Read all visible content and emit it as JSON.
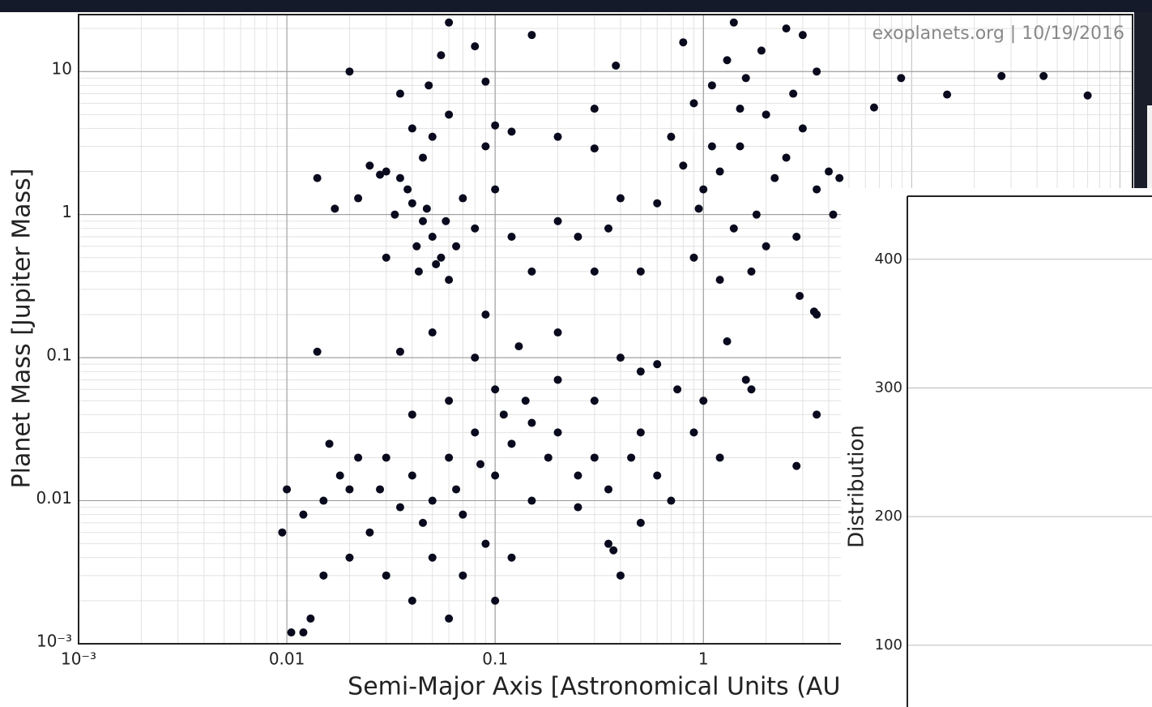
{
  "chart_data": [
    {
      "type": "scatter",
      "annotation": "exoplanets.org | 10/19/2016",
      "x_label": "Semi-Major Axis [Astronomical Units (AU)]",
      "y_label": "Planet Mass [Jupiter Mass]",
      "xscale": "log",
      "yscale": "log",
      "grid": "major+minor",
      "color": "#0a0a1e",
      "xlim": [
        0.001,
        115
      ],
      "ylim": [
        0.001,
        25
      ],
      "xticks": [
        {
          "value": 0.001,
          "label": "10⁻³"
        },
        0.01,
        0.1,
        1
      ],
      "yticks": [
        {
          "value": 0.001,
          "label": "10⁻³"
        },
        0.01,
        0.1,
        1,
        10
      ],
      "x": [
        0.03,
        0.035,
        0.04,
        0.045,
        0.05,
        0.055,
        0.042,
        0.038,
        0.047,
        0.052,
        0.06,
        0.033,
        0.028,
        0.025,
        0.045,
        0.05,
        0.04,
        0.06,
        0.055,
        0.048,
        0.035,
        0.07,
        0.08,
        0.065,
        0.058,
        0.043,
        0.03,
        0.017,
        0.014,
        0.022,
        0.1,
        0.12,
        0.15,
        0.2,
        0.09,
        0.12,
        0.2,
        0.15,
        0.06,
        0.08,
        0.09,
        0.1,
        0.25,
        0.3,
        0.35,
        0.4,
        0.3,
        0.3,
        0.38,
        1,
        1.2,
        1.5,
        2,
        1.8,
        2.5,
        3,
        1.1,
        1.3,
        1.6,
        2.2,
        0.8,
        0.9,
        0.7,
        1.4,
        2.8,
        3.5,
        4,
        4.5,
        2,
        1.7,
        1.2,
        0.9,
        0.6,
        0.5,
        0.8,
        1.4,
        2.5,
        3,
        3.5,
        4.2,
        2.7,
        1.9,
        1.5,
        1.1,
        0.95,
        2.9,
        3.4,
        1.3,
        0.6,
        0.75,
        1.0,
        1.2,
        0.9,
        1.6,
        1.7,
        0.01,
        0.012,
        0.015,
        0.02,
        0.025,
        0.03,
        0.04,
        0.05,
        0.06,
        0.07,
        0.08,
        0.1,
        0.12,
        0.15,
        0.18,
        0.2,
        0.25,
        0.3,
        0.35,
        0.45,
        0.5,
        0.6,
        0.7,
        0.05,
        0.07,
        0.09,
        0.12,
        0.1,
        0.06,
        0.04,
        0.03,
        0.02,
        0.015,
        0.012,
        0.013,
        0.0095,
        0.04,
        0.06,
        0.1,
        0.14,
        0.2,
        0.3,
        0.25,
        0.35,
        0.4,
        0.15,
        0.11,
        0.085,
        0.065,
        0.045,
        0.035,
        0.028,
        0.022,
        0.018,
        0.016,
        0.08,
        0.05,
        0.035,
        0.09,
        0.13,
        0.2,
        0.4,
        0.5,
        0.014,
        0.02,
        0.0105,
        0.5,
        0.37,
        6.6,
        8.9,
        14.8,
        27,
        43,
        70,
        2.8,
        3.5,
        3.5
      ],
      "values": [
        2.0,
        1.8,
        1.2,
        0.9,
        0.7,
        0.5,
        0.6,
        1.5,
        1.1,
        0.45,
        0.35,
        1.0,
        1.9,
        2.2,
        2.5,
        3.5,
        4.0,
        5.0,
        13,
        8,
        7,
        1.3,
        0.8,
        0.6,
        0.9,
        0.4,
        0.5,
        1.1,
        1.8,
        1.3,
        1.5,
        0.7,
        0.4,
        0.9,
        3.0,
        3.8,
        3.5,
        18,
        22,
        15,
        8.5,
        4.2,
        0.7,
        0.4,
        0.8,
        1.3,
        2.9,
        5.5,
        11,
        1.5,
        2,
        3,
        5,
        1,
        2.5,
        4,
        8,
        12,
        9,
        1.8,
        2.2,
        6,
        3.5,
        0.8,
        0.7,
        1.5,
        2,
        1.8,
        0.6,
        0.4,
        0.35,
        0.5,
        1.2,
        0.4,
        16,
        22,
        20,
        18,
        10,
        1.0,
        7,
        14,
        5.5,
        3,
        1.1,
        0.27,
        0.21,
        0.13,
        0.09,
        0.06,
        0.05,
        0.02,
        0.03,
        0.07,
        0.06,
        0.012,
        0.008,
        0.01,
        0.012,
        0.006,
        0.02,
        0.015,
        0.01,
        0.02,
        0.008,
        0.03,
        0.015,
        0.025,
        0.01,
        0.02,
        0.03,
        0.015,
        0.02,
        0.012,
        0.02,
        0.03,
        0.015,
        0.01,
        0.004,
        0.003,
        0.005,
        0.004,
        0.002,
        0.0015,
        0.002,
        0.003,
        0.004,
        0.003,
        0.0012,
        0.0015,
        0.006,
        0.04,
        0.05,
        0.06,
        0.05,
        0.07,
        0.05,
        0.009,
        0.005,
        0.003,
        0.035,
        0.04,
        0.018,
        0.012,
        0.007,
        0.009,
        0.012,
        0.02,
        0.015,
        0.025,
        0.1,
        0.15,
        0.11,
        0.2,
        0.12,
        0.15,
        0.1,
        0.08,
        0.11,
        10,
        0.0012,
        0.007,
        0.0045,
        5.6,
        9.0,
        6.9,
        9.3,
        9.3,
        6.8,
        0.0175,
        0.04,
        0.2
      ]
    },
    {
      "type": "histogram",
      "y_label": "Distribution",
      "ylim": [
        52,
        449
      ],
      "yticks": [
        100,
        200,
        300,
        400
      ],
      "grid": true
    }
  ]
}
